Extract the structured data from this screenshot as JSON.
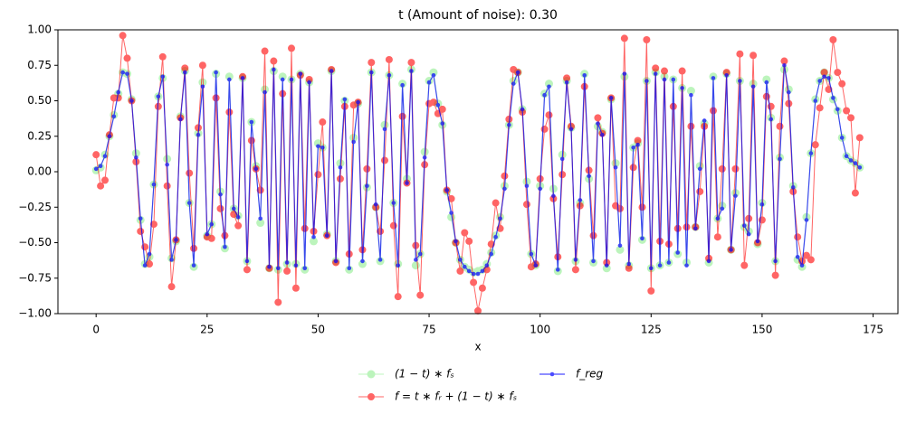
{
  "chart_data": {
    "type": "line",
    "title": "t (Amount of noise): 0.30",
    "x_label": "x",
    "x": [
      0,
      1,
      2,
      3,
      4,
      5,
      6,
      7,
      8,
      9,
      10,
      11,
      12,
      13,
      14,
      15,
      16,
      17,
      18,
      19,
      20,
      21,
      22,
      23,
      24,
      25,
      26,
      27,
      28,
      29,
      30,
      31,
      32,
      33,
      34,
      35,
      36,
      37,
      38,
      39,
      40,
      41,
      42,
      43,
      44,
      45,
      46,
      47,
      48,
      49,
      50,
      51,
      52,
      53,
      54,
      55,
      56,
      57,
      58,
      59,
      60,
      61,
      62,
      63,
      64,
      65,
      66,
      67,
      68,
      69,
      70,
      71,
      72,
      73,
      74,
      75,
      76,
      77,
      78,
      79,
      80,
      81,
      82,
      83,
      84,
      85,
      86,
      87,
      88,
      89,
      90,
      91,
      92,
      93,
      94,
      95,
      96,
      97,
      98,
      99,
      100,
      101,
      102,
      103,
      104,
      105,
      106,
      107,
      108,
      109,
      110,
      111,
      112,
      113,
      114,
      115,
      116,
      117,
      118,
      119,
      120,
      121,
      122,
      123,
      124,
      125,
      126,
      127,
      128,
      129,
      130,
      131,
      132,
      133,
      134,
      135,
      136,
      137,
      138,
      139,
      140,
      141,
      142,
      143,
      144,
      145,
      146,
      147,
      148,
      149,
      150,
      151,
      152,
      153,
      154,
      155,
      156,
      157,
      158,
      159,
      160,
      161,
      162,
      163,
      164,
      165,
      166,
      167,
      168,
      169,
      170,
      171,
      172
    ],
    "xlim": [
      -8.6,
      180.6
    ],
    "xticks": [
      0,
      25,
      50,
      75,
      100,
      125,
      150,
      175
    ],
    "ylim": [
      -1,
      1
    ],
    "yticks": [
      {
        "value": -1,
        "label": "−1.00"
      },
      {
        "value": -0.75,
        "label": "−0.75"
      },
      {
        "value": -0.5,
        "label": "−0.50"
      },
      {
        "value": -0.25,
        "label": "−0.25"
      },
      {
        "value": 0,
        "label": "0.00"
      },
      {
        "value": 0.25,
        "label": "0.25"
      },
      {
        "value": 0.5,
        "label": "0.50"
      },
      {
        "value": 0.75,
        "label": "0.75"
      },
      {
        "value": 1,
        "label": "1.00"
      }
    ],
    "grid": false,
    "legend_position": "bottom",
    "legend_columns": 2,
    "series": [
      {
        "name": "(1 − t) ∗ fₛ",
        "color": "#90ee90",
        "values": [
          0.01,
          0.03,
          0.12,
          0.25,
          0.4,
          0.55,
          0.7,
          0.69,
          0.51,
          0.13,
          -0.34,
          -0.65,
          -0.6,
          -0.09,
          0.53,
          0.66,
          0.09,
          -0.61,
          -0.49,
          0.39,
          0.71,
          -0.22,
          -0.67,
          0.27,
          0.63,
          -0.45,
          -0.37,
          0.69,
          -0.14,
          -0.54,
          0.67,
          -0.26,
          -0.31,
          0.66,
          -0.63,
          0.35,
          0.04,
          -0.36,
          0.58,
          -0.68,
          0.71,
          -0.69,
          0.67,
          -0.65,
          0.65,
          -0.65,
          0.69,
          -0.69,
          0.63,
          -0.49,
          0.2,
          0.17,
          -0.44,
          0.71,
          -0.63,
          0.06,
          0.5,
          -0.69,
          0.24,
          0.48,
          -0.65,
          -0.11,
          0.7,
          -0.25,
          -0.63,
          0.33,
          0.68,
          -0.22,
          -0.65,
          0.62,
          -0.05,
          0.72,
          -0.66,
          -0.58,
          0.14,
          0.64,
          0.7,
          0.48,
          0.33,
          -0.14,
          -0.32,
          -0.5,
          -0.62,
          -0.67,
          -0.69,
          -0.71,
          -0.7,
          -0.69,
          -0.65,
          -0.57,
          -0.45,
          -0.32,
          -0.1,
          0.33,
          0.64,
          0.7,
          0.44,
          -0.07,
          -0.58,
          -0.66,
          -0.1,
          0.55,
          0.62,
          -0.12,
          -0.7,
          0.12,
          0.64,
          0.31,
          -0.63,
          -0.22,
          0.69,
          -0.05,
          -0.64,
          0.32,
          0.28,
          -0.68,
          0.51,
          0.06,
          -0.55,
          0.67,
          -0.66,
          0.17,
          0.2,
          -0.48,
          0.64,
          -0.68,
          0.7,
          -0.66,
          0.67,
          -0.64,
          0.65,
          -0.58,
          0.59,
          -0.64,
          0.57,
          -0.39,
          0.04,
          0.34,
          -0.64,
          0.67,
          -0.33,
          -0.24,
          0.69,
          -0.55,
          -0.15,
          0.64,
          -0.39,
          -0.42,
          0.62,
          -0.51,
          -0.22,
          0.65,
          0.38,
          -0.63,
          0.1,
          0.72,
          0.58,
          -0.1,
          -0.62,
          -0.67,
          -0.32,
          0.13,
          0.51,
          0.64,
          0.7,
          0.66,
          0.51,
          0.43,
          0.24,
          0.11,
          0.08,
          0.06,
          0.03
        ]
      },
      {
        "name": "f = t ∗ fᵣ + (1 − t) ∗ fₛ",
        "color": "#ff0000",
        "values": [
          0.12,
          -0.1,
          -0.06,
          0.26,
          0.52,
          0.52,
          0.96,
          0.8,
          0.5,
          0.07,
          -0.42,
          -0.53,
          -0.65,
          -0.37,
          0.46,
          0.81,
          -0.1,
          -0.81,
          -0.48,
          0.38,
          0.73,
          -0.01,
          -0.54,
          0.31,
          0.75,
          -0.46,
          -0.47,
          0.52,
          -0.26,
          -0.45,
          0.42,
          -0.3,
          -0.38,
          0.67,
          -0.69,
          0.22,
          0.02,
          -0.13,
          0.85,
          -0.68,
          0.78,
          -0.92,
          0.55,
          -0.7,
          0.87,
          -0.82,
          0.68,
          -0.4,
          0.65,
          -0.42,
          -0.02,
          0.35,
          -0.45,
          0.72,
          -0.64,
          -0.05,
          0.46,
          -0.58,
          0.47,
          0.49,
          -0.55,
          0.02,
          0.77,
          -0.25,
          -0.42,
          0.08,
          0.79,
          -0.38,
          -0.88,
          0.39,
          -0.08,
          0.77,
          -0.52,
          -0.87,
          0.05,
          0.48,
          0.49,
          0.41,
          0.44,
          -0.13,
          -0.19,
          -0.5,
          -0.7,
          -0.43,
          -0.49,
          -0.78,
          -0.98,
          -0.82,
          -0.69,
          -0.51,
          -0.22,
          -0.4,
          -0.03,
          0.37,
          0.72,
          0.7,
          0.42,
          -0.23,
          -0.67,
          -0.65,
          -0.05,
          0.3,
          0.4,
          -0.19,
          -0.6,
          -0.02,
          0.66,
          0.32,
          -0.69,
          -0.24,
          0.6,
          0.01,
          -0.45,
          0.38,
          0.27,
          -0.64,
          0.52,
          -0.24,
          -0.26,
          0.94,
          -0.68,
          0.03,
          0.22,
          -0.25,
          0.93,
          -0.84,
          0.73,
          -0.49,
          0.71,
          -0.51,
          0.46,
          -0.4,
          0.71,
          -0.39,
          0.32,
          -0.39,
          -0.14,
          0.32,
          -0.61,
          0.43,
          -0.46,
          0.02,
          0.7,
          -0.55,
          0.02,
          0.83,
          -0.66,
          -0.33,
          0.82,
          -0.5,
          -0.34,
          0.53,
          0.46,
          -0.73,
          0.32,
          0.78,
          0.48,
          -0.14,
          -0.46,
          -0.63,
          -0.59,
          -0.62,
          0.19,
          0.45,
          0.7,
          0.58,
          0.93,
          0.7,
          0.62,
          0.43,
          0.38,
          -0.15,
          0.24
        ]
      },
      {
        "name": "f_reg",
        "color": "#0000ff",
        "values": [
          0.02,
          0.04,
          0.11,
          0.25,
          0.39,
          0.56,
          0.7,
          0.69,
          0.5,
          0.1,
          -0.33,
          -0.66,
          -0.58,
          -0.09,
          0.53,
          0.67,
          0.05,
          -0.62,
          -0.48,
          0.37,
          0.7,
          -0.22,
          -0.66,
          0.26,
          0.6,
          -0.44,
          -0.37,
          0.7,
          -0.16,
          -0.53,
          0.65,
          -0.26,
          -0.32,
          0.66,
          -0.63,
          0.35,
          0.02,
          -0.33,
          0.56,
          -0.67,
          0.72,
          -0.68,
          0.65,
          -0.64,
          0.65,
          -0.66,
          0.69,
          -0.68,
          0.63,
          -0.46,
          0.18,
          0.17,
          -0.45,
          0.71,
          -0.63,
          0.03,
          0.51,
          -0.68,
          0.21,
          0.49,
          -0.63,
          -0.1,
          0.7,
          -0.23,
          -0.62,
          0.3,
          0.68,
          -0.22,
          -0.66,
          0.61,
          -0.08,
          0.71,
          -0.62,
          -0.58,
          0.1,
          0.63,
          0.68,
          0.47,
          0.34,
          -0.13,
          -0.29,
          -0.49,
          -0.62,
          -0.67,
          -0.7,
          -0.72,
          -0.72,
          -0.7,
          -0.66,
          -0.58,
          -0.46,
          -0.33,
          -0.12,
          0.33,
          0.62,
          0.7,
          0.44,
          -0.1,
          -0.58,
          -0.66,
          -0.12,
          0.54,
          0.6,
          -0.17,
          -0.69,
          0.09,
          0.63,
          0.3,
          -0.62,
          -0.2,
          0.68,
          -0.03,
          -0.63,
          0.34,
          0.26,
          -0.66,
          0.52,
          0.03,
          -0.52,
          0.69,
          -0.65,
          0.17,
          0.19,
          -0.47,
          0.64,
          -0.68,
          0.69,
          -0.66,
          0.65,
          -0.64,
          0.65,
          -0.57,
          0.59,
          -0.66,
          0.54,
          -0.4,
          0.02,
          0.36,
          -0.63,
          0.66,
          -0.33,
          -0.26,
          0.68,
          -0.55,
          -0.17,
          0.64,
          -0.38,
          -0.44,
          0.6,
          -0.49,
          -0.23,
          0.63,
          0.37,
          -0.63,
          0.09,
          0.75,
          0.56,
          -0.11,
          -0.6,
          -0.66,
          -0.34,
          0.13,
          0.5,
          0.64,
          0.67,
          0.66,
          0.52,
          0.44,
          0.24,
          0.11,
          0.08,
          0.06,
          0.03
        ]
      }
    ]
  }
}
